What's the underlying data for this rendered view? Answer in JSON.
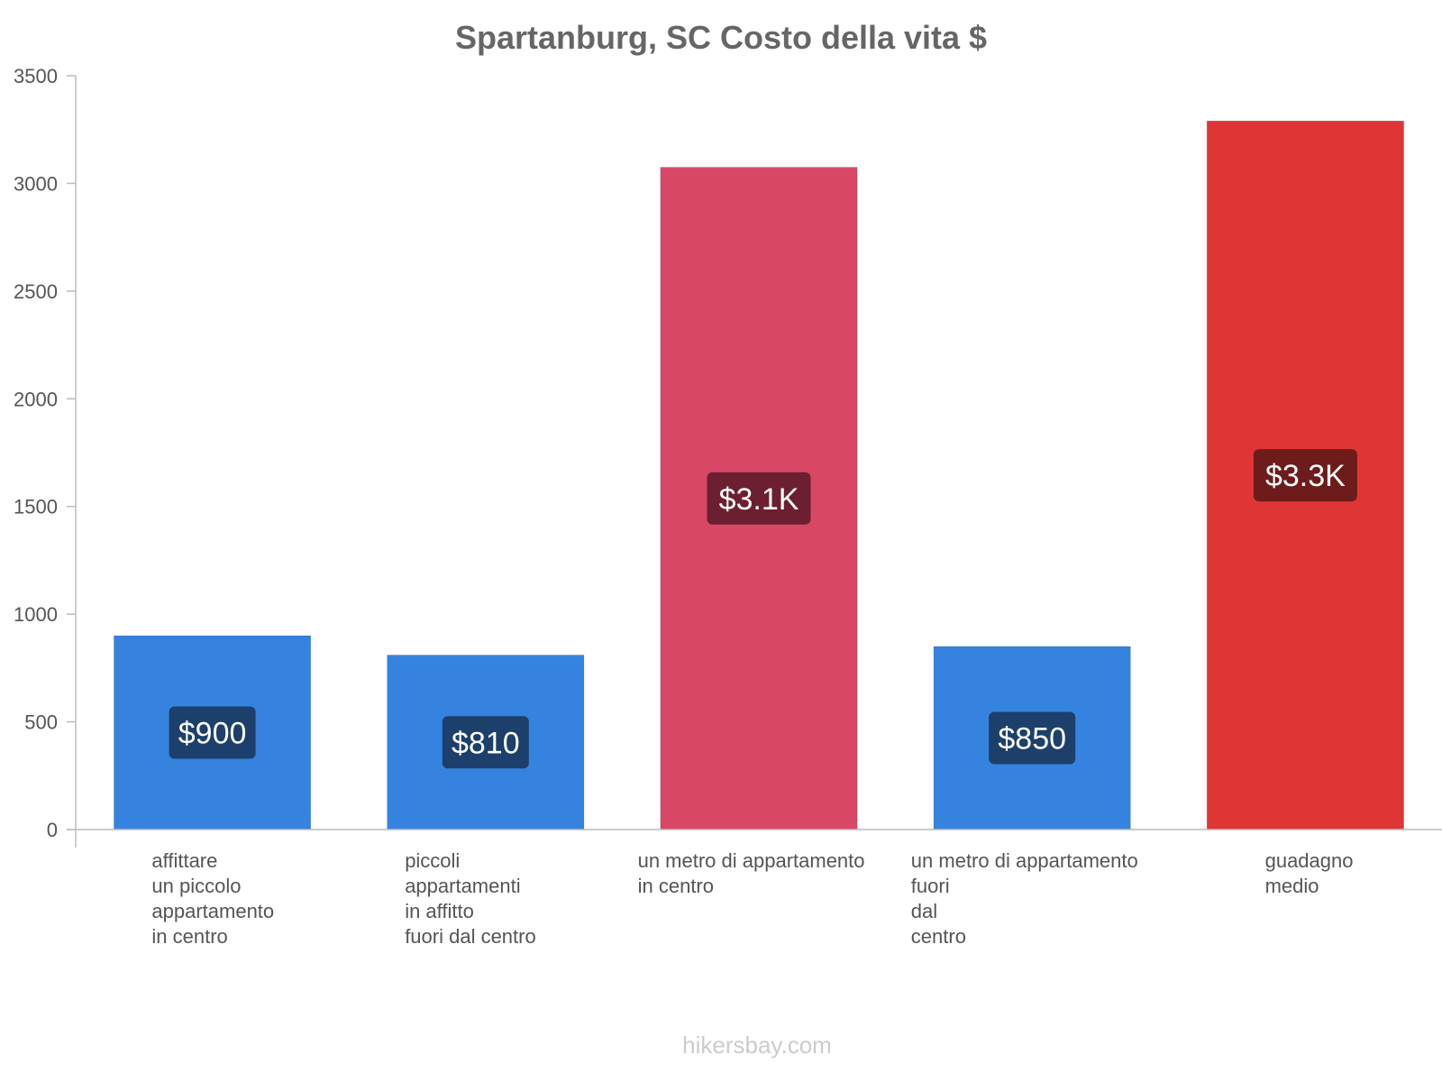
{
  "chart_data": {
    "type": "bar",
    "title": "Spartanburg, SC Costo della vita $",
    "xlabel": "",
    "ylabel": "",
    "ylim": [
      0,
      3500
    ],
    "yticks": [
      0,
      500,
      1000,
      1500,
      2000,
      2500,
      3000,
      3500
    ],
    "grid": false,
    "categories": [
      [
        "affittare",
        "un piccolo",
        "appartamento",
        "in centro"
      ],
      [
        "piccoli",
        "appartamenti",
        "in affitto",
        "fuori dal centro"
      ],
      [
        "un metro di appartamento",
        "in centro"
      ],
      [
        "un metro di appartamento",
        "fuori",
        "dal",
        "centro"
      ],
      [
        "guadagno",
        "medio"
      ]
    ],
    "values": [
      900,
      810,
      3075,
      850,
      3290
    ],
    "value_labels": [
      "$900",
      "$810",
      "$3.1K",
      "$850",
      "$3.3K"
    ],
    "bar_colors": [
      "#3583de",
      "#3583de",
      "#d84866",
      "#3583de",
      "#e03535"
    ],
    "label_box_colors": [
      "#1d3f6b",
      "#1d3f6b",
      "#6b1f30",
      "#1d3f6b",
      "#6e1b1b"
    ]
  },
  "footer": {
    "watermark": "hikersbay.com"
  }
}
